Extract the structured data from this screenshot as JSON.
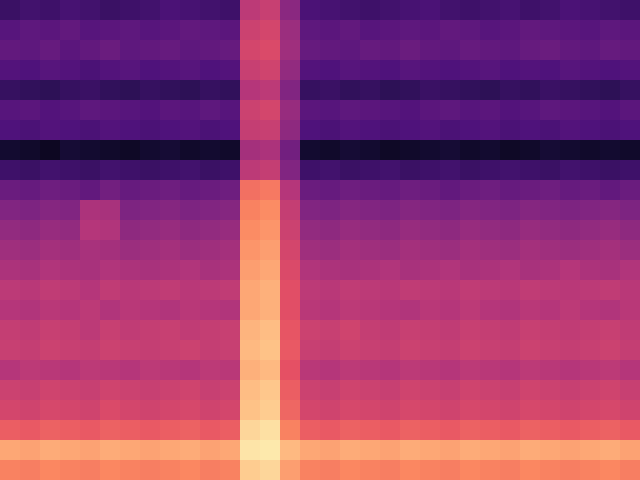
{
  "chart_data": {
    "type": "heatmap",
    "tick_labels": false,
    "grid": false,
    "zlim": [
      0,
      100
    ],
    "cells": [
      [
        20,
        22,
        21,
        23,
        22,
        20,
        21,
        22,
        24,
        23,
        22,
        21,
        52,
        55,
        40,
        24,
        23,
        22,
        21,
        22,
        23,
        24,
        22,
        21,
        22,
        23,
        21,
        22,
        24,
        23,
        22,
        21
      ],
      [
        27,
        29,
        28,
        30,
        27,
        28,
        29,
        27,
        28,
        30,
        29,
        28,
        56,
        58,
        44,
        29,
        28,
        30,
        27,
        28,
        29,
        28,
        30,
        29,
        27,
        28,
        30,
        29,
        28,
        27,
        29,
        28
      ],
      [
        30,
        29,
        31,
        28,
        30,
        32,
        29,
        30,
        31,
        29,
        30,
        31,
        58,
        60,
        45,
        31,
        30,
        29,
        31,
        30,
        32,
        30,
        29,
        31,
        30,
        29,
        31,
        32,
        30,
        29,
        31,
        30
      ],
      [
        26,
        25,
        27,
        26,
        24,
        26,
        27,
        25,
        26,
        27,
        25,
        26,
        55,
        57,
        42,
        26,
        25,
        27,
        26,
        25,
        27,
        26,
        25,
        26,
        27,
        25,
        26,
        25,
        27,
        26,
        25,
        26
      ],
      [
        19,
        18,
        17,
        19,
        20,
        18,
        17,
        19,
        18,
        17,
        19,
        18,
        50,
        52,
        38,
        19,
        20,
        18,
        19,
        17,
        18,
        20,
        19,
        18,
        17,
        19,
        18,
        20,
        19,
        18,
        17,
        19
      ],
      [
        27,
        28,
        26,
        27,
        29,
        28,
        27,
        26,
        28,
        27,
        29,
        27,
        56,
        58,
        43,
        28,
        27,
        29,
        28,
        27,
        26,
        28,
        29,
        27,
        28,
        26,
        27,
        29,
        28,
        27,
        26,
        28
      ],
      [
        25,
        24,
        26,
        25,
        24,
        26,
        25,
        24,
        25,
        26,
        24,
        25,
        54,
        55,
        41,
        25,
        24,
        26,
        25,
        24,
        25,
        26,
        24,
        25,
        26,
        24,
        25,
        24,
        26,
        25,
        24,
        25
      ],
      [
        9,
        8,
        6,
        10,
        9,
        8,
        7,
        9,
        10,
        8,
        9,
        8,
        46,
        48,
        34,
        9,
        8,
        10,
        9,
        7,
        8,
        9,
        10,
        8,
        9,
        7,
        8,
        10,
        9,
        8,
        9,
        8
      ],
      [
        21,
        20,
        22,
        21,
        20,
        22,
        21,
        20,
        21,
        22,
        20,
        21,
        52,
        54,
        38,
        21,
        22,
        20,
        21,
        22,
        20,
        21,
        22,
        20,
        21,
        22,
        21,
        20,
        22,
        21,
        20,
        21
      ],
      [
        32,
        31,
        33,
        32,
        30,
        34,
        31,
        32,
        33,
        31,
        32,
        33,
        70,
        72,
        50,
        32,
        31,
        33,
        32,
        31,
        33,
        32,
        30,
        32,
        33,
        31,
        32,
        33,
        31,
        32,
        30,
        32
      ],
      [
        38,
        37,
        39,
        38,
        48,
        47,
        37,
        38,
        39,
        37,
        38,
        39,
        74,
        76,
        54,
        38,
        37,
        39,
        38,
        37,
        39,
        38,
        37,
        39,
        38,
        37,
        39,
        38,
        37,
        38,
        39,
        37
      ],
      [
        42,
        41,
        43,
        42,
        50,
        49,
        41,
        42,
        43,
        41,
        42,
        43,
        76,
        78,
        56,
        42,
        41,
        43,
        42,
        41,
        43,
        42,
        41,
        43,
        42,
        41,
        43,
        42,
        41,
        42,
        43,
        41
      ],
      [
        45,
        44,
        46,
        45,
        47,
        46,
        44,
        45,
        46,
        44,
        45,
        46,
        78,
        80,
        58,
        45,
        44,
        46,
        45,
        44,
        46,
        45,
        44,
        46,
        45,
        44,
        46,
        45,
        44,
        45,
        46,
        44
      ],
      [
        48,
        47,
        49,
        48,
        47,
        49,
        48,
        47,
        48,
        49,
        47,
        48,
        80,
        82,
        60,
        49,
        48,
        47,
        48,
        49,
        47,
        48,
        49,
        47,
        48,
        49,
        47,
        48,
        50,
        48,
        47,
        49
      ],
      [
        52,
        51,
        53,
        52,
        50,
        53,
        51,
        52,
        53,
        51,
        52,
        53,
        82,
        84,
        62,
        52,
        51,
        53,
        52,
        51,
        53,
        52,
        51,
        53,
        52,
        51,
        53,
        52,
        51,
        52,
        53,
        51
      ],
      [
        50,
        49,
        51,
        50,
        52,
        49,
        51,
        50,
        49,
        51,
        50,
        49,
        82,
        84,
        62,
        51,
        50,
        52,
        51,
        50,
        49,
        51,
        50,
        52,
        50,
        49,
        51,
        50,
        52,
        50,
        49,
        51
      ],
      [
        54,
        53,
        55,
        54,
        52,
        55,
        53,
        54,
        55,
        53,
        54,
        55,
        85,
        87,
        64,
        56,
        55,
        57,
        54,
        53,
        55,
        54,
        53,
        55,
        54,
        53,
        55,
        54,
        53,
        54,
        55,
        53
      ],
      [
        55,
        54,
        56,
        55,
        54,
        56,
        55,
        54,
        55,
        56,
        54,
        55,
        86,
        88,
        65,
        55,
        54,
        56,
        55,
        54,
        56,
        55,
        54,
        56,
        55,
        54,
        56,
        55,
        54,
        55,
        56,
        54
      ],
      [
        50,
        52,
        51,
        50,
        52,
        51,
        50,
        52,
        51,
        50,
        52,
        51,
        84,
        86,
        63,
        51,
        50,
        52,
        51,
        50,
        52,
        51,
        50,
        52,
        51,
        50,
        52,
        51,
        50,
        51,
        52,
        50
      ],
      [
        56,
        55,
        57,
        56,
        55,
        57,
        56,
        55,
        56,
        57,
        55,
        56,
        87,
        89,
        66,
        56,
        55,
        57,
        56,
        55,
        57,
        56,
        55,
        57,
        56,
        55,
        57,
        56,
        55,
        56,
        57,
        55
      ],
      [
        58,
        57,
        59,
        58,
        57,
        60,
        58,
        57,
        58,
        59,
        57,
        58,
        88,
        90,
        68,
        58,
        57,
        59,
        58,
        57,
        59,
        58,
        57,
        59,
        58,
        57,
        59,
        58,
        57,
        58,
        59,
        57
      ],
      [
        66,
        65,
        67,
        66,
        65,
        67,
        66,
        65,
        66,
        67,
        65,
        66,
        92,
        94,
        74,
        66,
        65,
        67,
        66,
        65,
        67,
        66,
        65,
        67,
        66,
        65,
        67,
        66,
        65,
        66,
        67,
        65
      ],
      [
        82,
        81,
        83,
        82,
        81,
        83,
        82,
        81,
        82,
        83,
        81,
        82,
        95,
        96,
        86,
        82,
        81,
        83,
        82,
        81,
        83,
        82,
        81,
        83,
        82,
        81,
        83,
        82,
        81,
        82,
        83,
        81
      ],
      [
        74,
        73,
        75,
        74,
        73,
        75,
        74,
        73,
        74,
        75,
        73,
        74,
        90,
        92,
        80,
        74,
        73,
        75,
        74,
        73,
        75,
        74,
        73,
        75,
        74,
        73,
        75,
        74,
        73,
        74,
        75,
        73
      ]
    ]
  }
}
